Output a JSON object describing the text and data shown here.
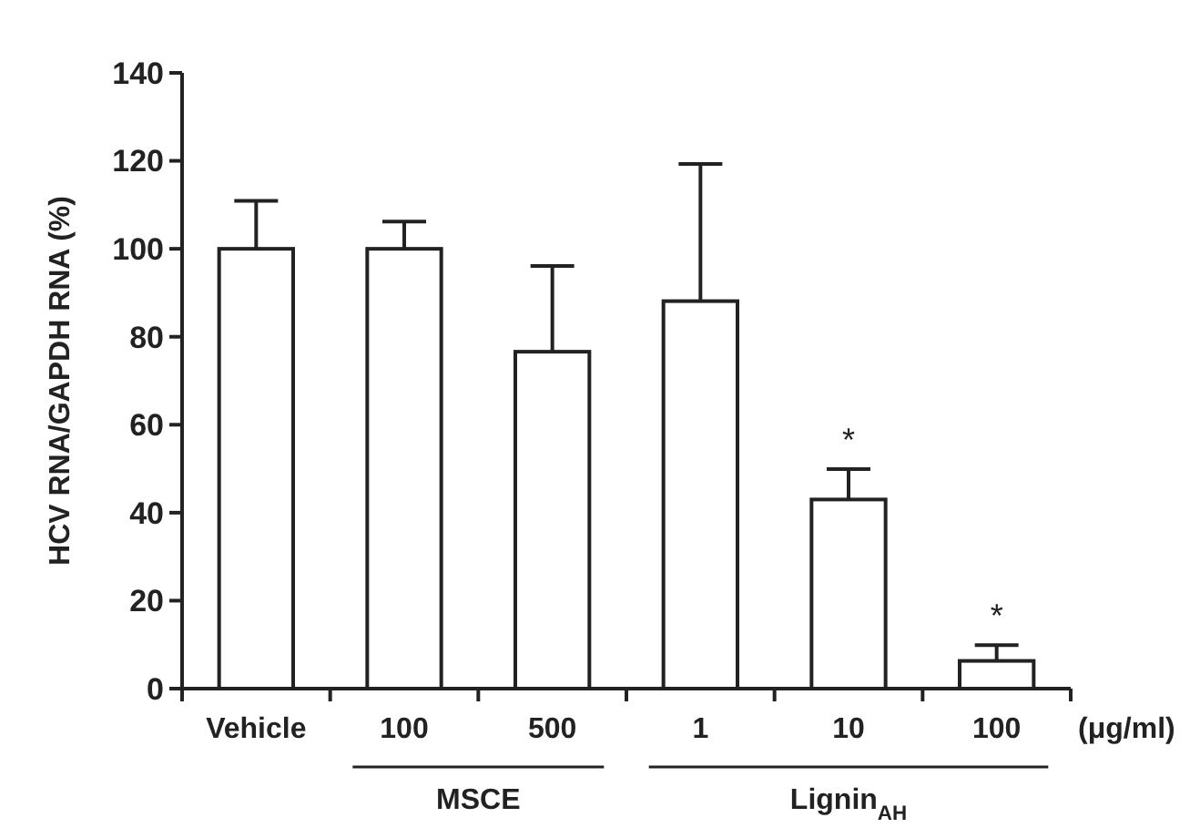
{
  "chart_data": {
    "type": "bar",
    "ylabel": "HCV RNA/GAPDH RNA (%)",
    "categories": [
      "Vehicle",
      "100",
      "500",
      "1",
      "10",
      "100"
    ],
    "values": [
      100,
      100,
      76.6,
      88.1,
      43,
      6.3
    ],
    "errors": [
      [
        100,
        110.9
      ],
      [
        100,
        106.2
      ],
      [
        76.6,
        96.1
      ],
      [
        88.1,
        119.3
      ],
      [
        43,
        49.9
      ],
      [
        6.3,
        9.9
      ]
    ],
    "color": "#ffffff",
    "ylim": [
      0,
      140
    ],
    "yticks": [
      0,
      20,
      40,
      60,
      80,
      100,
      120,
      140
    ],
    "grid": false,
    "annotations": [
      "MSCE",
      "Lignin$_{AH}$",
      "(μg/ml)",
      "*",
      "*"
    ]
  }
}
